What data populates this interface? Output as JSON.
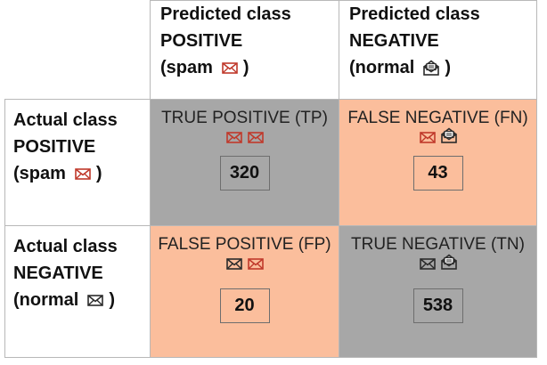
{
  "colors": {
    "correct": "#a7a7a7",
    "error": "#fbbe9c",
    "spam_icon": "#c0392b",
    "normal_icon": "#2b2b2b",
    "grid": "#b8b8b8"
  },
  "columns": [
    {
      "line1": "Predicted class",
      "line2": "POSITIVE",
      "line3": "(spam",
      "close": ")",
      "icon": "spam-envelope-icon"
    },
    {
      "line1": "Predicted class",
      "line2": "NEGATIVE",
      "line3": "(normal",
      "close": ")",
      "icon": "normal-open-envelope-icon"
    }
  ],
  "rows": [
    {
      "line1": "Actual class",
      "line2": "POSITIVE",
      "line3": "(spam",
      "close": ")",
      "icon": "spam-envelope-icon"
    },
    {
      "line1": "Actual class",
      "line2": "NEGATIVE",
      "line3": "(normal",
      "close": ")",
      "icon": "normal-envelope-icon"
    }
  ],
  "cells": {
    "tp": {
      "title": "TRUE POSITIVE (TP)",
      "value": "320",
      "icons": [
        "spam-envelope-icon",
        "spam-envelope-icon"
      ]
    },
    "fn": {
      "title": "FALSE NEGATIVE (FN)",
      "value": "43",
      "icons": [
        "spam-envelope-icon",
        "normal-open-envelope-icon"
      ]
    },
    "fp": {
      "title": "FALSE POSITIVE (FP)",
      "value": "20",
      "icons": [
        "normal-envelope-icon",
        "spam-envelope-icon"
      ]
    },
    "tn": {
      "title": "TRUE NEGATIVE (TN)",
      "value": "538",
      "icons": [
        "normal-envelope-icon",
        "normal-open-envelope-icon"
      ]
    }
  }
}
